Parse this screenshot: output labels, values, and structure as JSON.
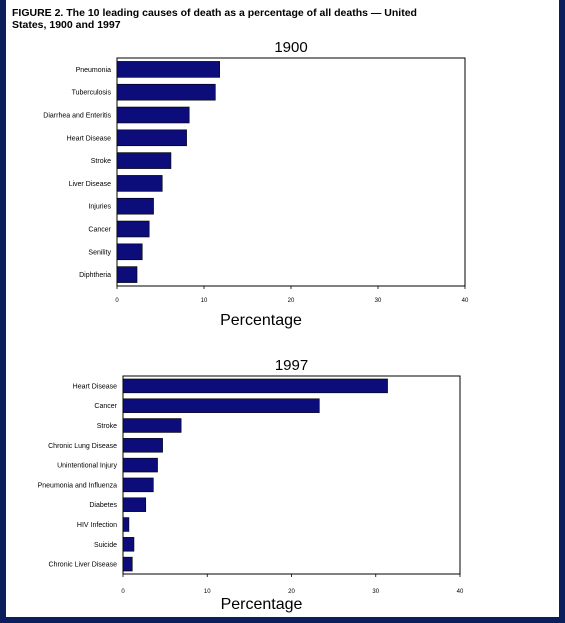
{
  "figure": {
    "title": "FIGURE 2. The 10 leading causes of death as a percentage of all deaths — United\nStates, 1900 and 1997"
  },
  "colors": {
    "background": "#0b1f5c",
    "bar_fill": "#0c0c7a",
    "bar_stroke": "#000000",
    "panel": "#ffffff"
  },
  "chart_data": [
    {
      "type": "bar",
      "orientation": "horizontal",
      "title": "1900",
      "xlabel": "Percentage",
      "ylabel": "",
      "xlim": [
        0,
        40
      ],
      "xticks": [
        0,
        10,
        20,
        30,
        40
      ],
      "grid": false,
      "categories": [
        "Pneumonia",
        "Tuberculosis",
        "Diarrhea and Enteritis",
        "Heart Disease",
        "Stroke",
        "Liver Disease",
        "Injuries",
        "Cancer",
        "Senility",
        "Diphtheria"
      ],
      "values": [
        11.8,
        11.3,
        8.3,
        8.0,
        6.2,
        5.2,
        4.2,
        3.7,
        2.9,
        2.3
      ]
    },
    {
      "type": "bar",
      "orientation": "horizontal",
      "title": "1997",
      "xlabel": "Percentage",
      "ylabel": "",
      "xlim": [
        0,
        40
      ],
      "xticks": [
        0,
        10,
        20,
        30,
        40
      ],
      "grid": false,
      "categories": [
        "Heart Disease",
        "Cancer",
        "Stroke",
        "Chronic Lung Disease",
        "Unintentional Injury",
        "Pneumonia and Influenza",
        "Diabetes",
        "HIV Infection",
        "Suicide",
        "Chronic Liver Disease"
      ],
      "values": [
        31.4,
        23.3,
        6.9,
        4.7,
        4.1,
        3.6,
        2.7,
        0.7,
        1.3,
        1.1
      ]
    }
  ]
}
